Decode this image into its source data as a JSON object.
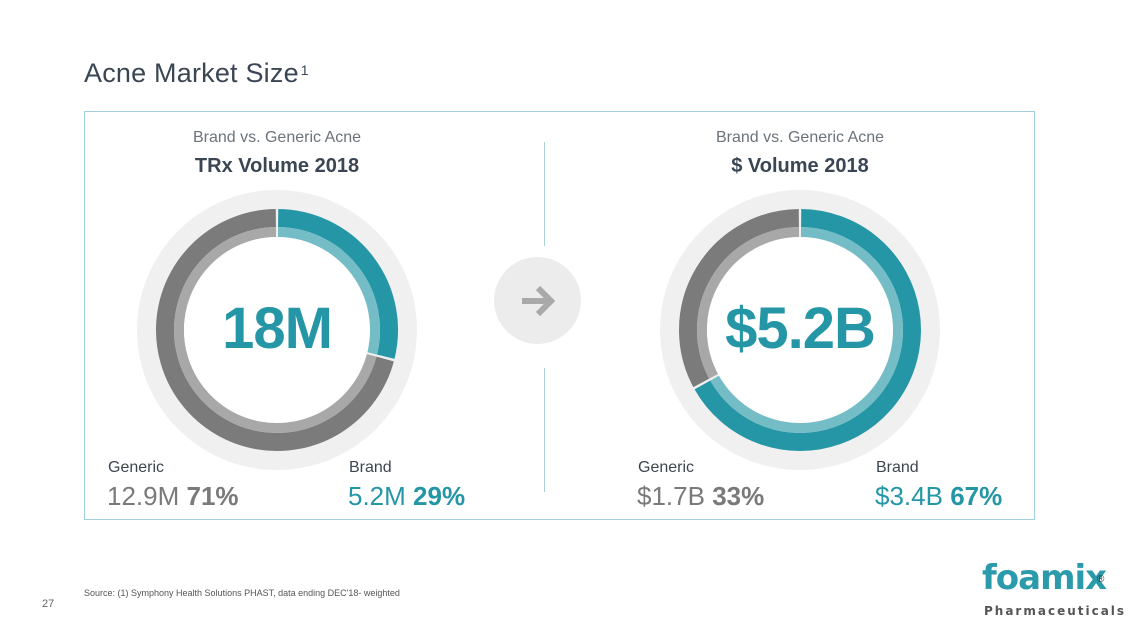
{
  "header": {
    "title": "Acne Market Size",
    "title_sup": "1"
  },
  "colors": {
    "teal": "#2596a6",
    "teal_light": "#74bcc6",
    "gray": "#7b7b7b",
    "gray_light": "#a8a8a8",
    "halo": "#f0f0f0"
  },
  "chart_data": [
    {
      "type": "pie",
      "subtitle": "Brand vs. Generic Acne",
      "title": "TRx Volume 2018",
      "center_label": "18M",
      "slices": [
        {
          "name": "Brand",
          "value": 29,
          "amount": "5.2M",
          "percent": "29%"
        },
        {
          "name": "Generic",
          "value": 71,
          "amount": "12.9M",
          "percent": "71%"
        }
      ]
    },
    {
      "type": "pie",
      "subtitle": "Brand vs. Generic Acne",
      "title": "$ Volume 2018",
      "center_label": "$5.2B",
      "slices": [
        {
          "name": "Brand",
          "value": 67,
          "amount": "$3.4B",
          "percent": "67%"
        },
        {
          "name": "Generic",
          "value": 33,
          "amount": "$1.7B",
          "percent": "33%"
        }
      ]
    }
  ],
  "footer": {
    "source": "Source: (1) Symphony Health Solutions PHAST, data ending DEC'18- weighted",
    "page_number": "27",
    "logo_name": "foamix",
    "logo_reg": "®",
    "logo_sub": "Pharmaceuticals"
  }
}
